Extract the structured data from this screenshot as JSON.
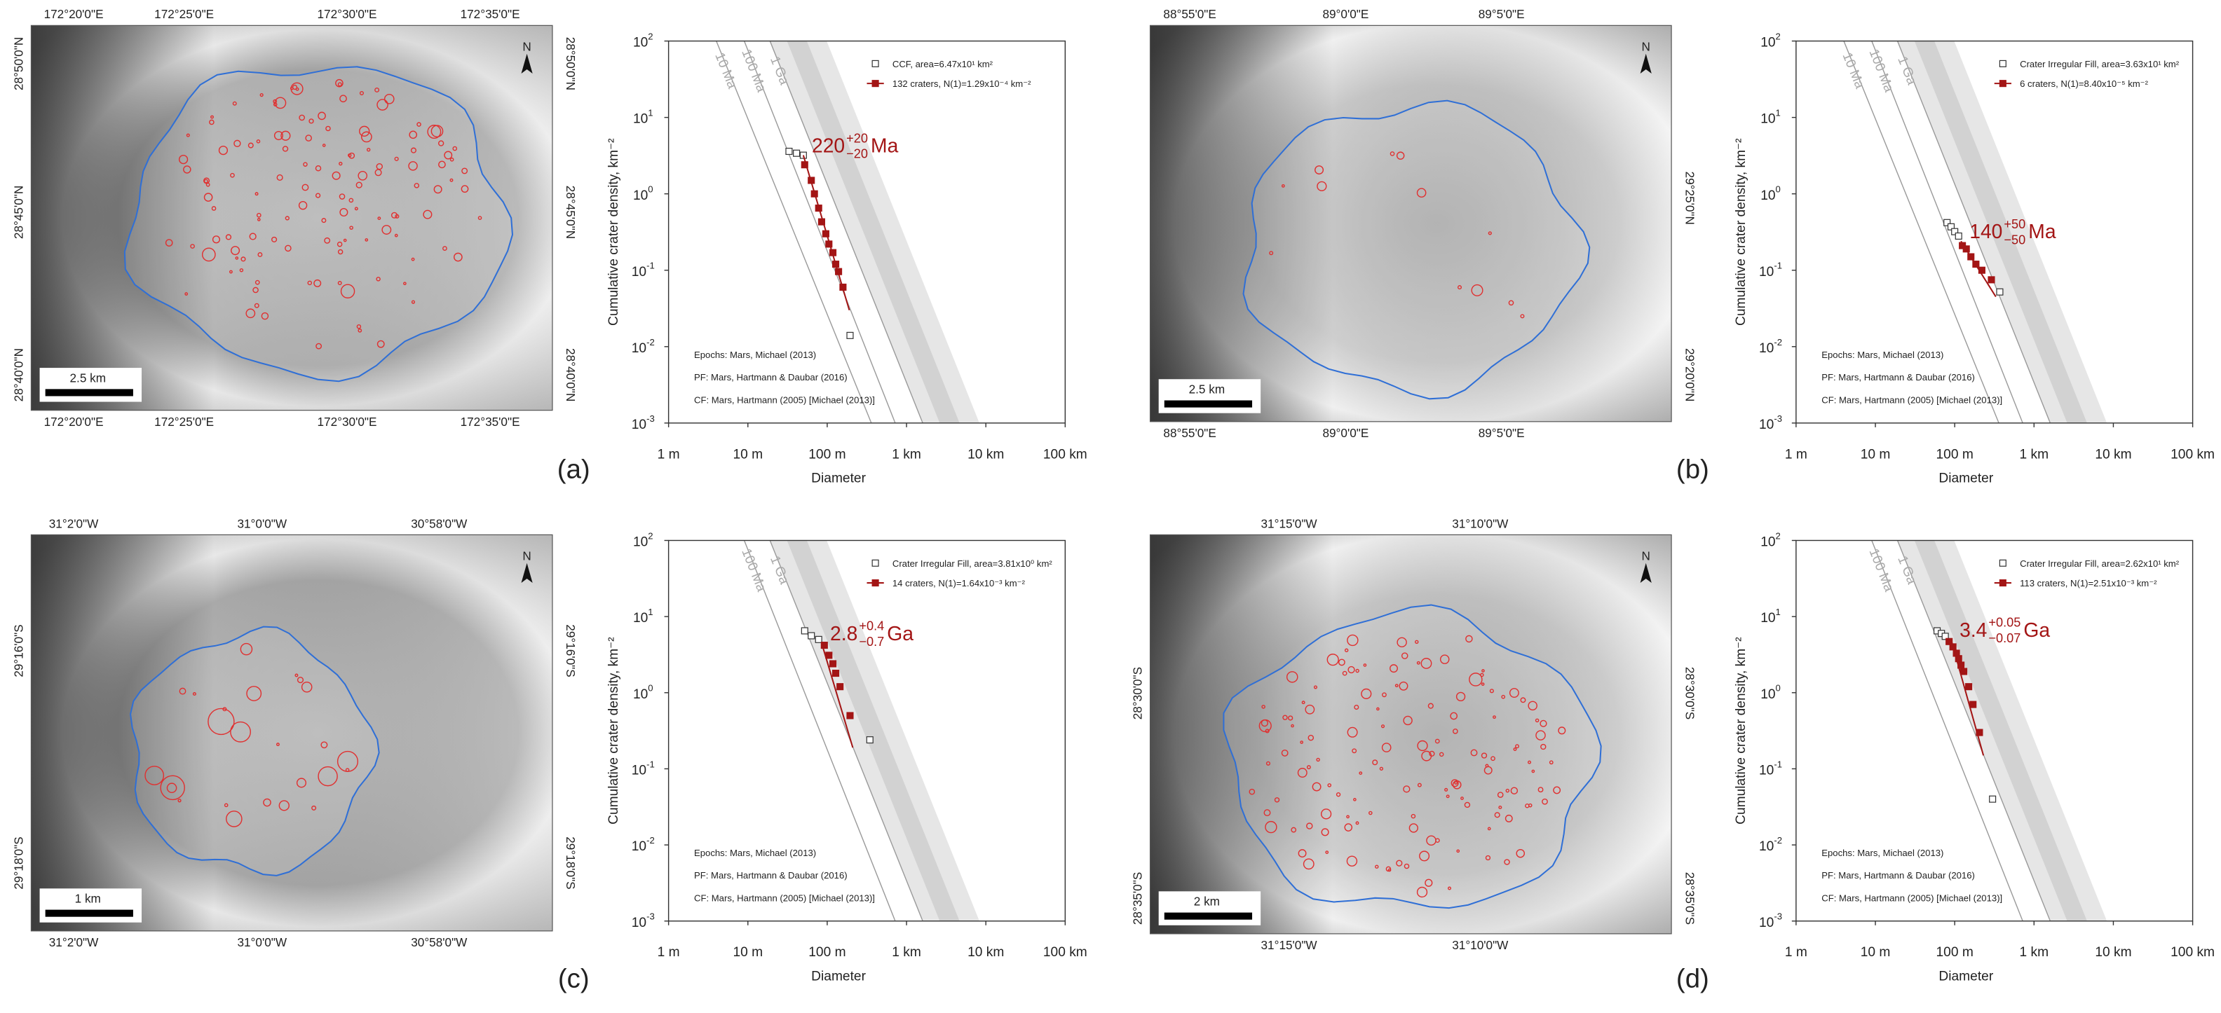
{
  "panels": [
    {
      "label": "(a)",
      "map": {
        "top_labels": [
          "172°20'0\"E",
          "172°25'0\"E",
          "172°30'0\"E",
          "172°35'0\"E"
        ],
        "bottom_labels": [
          "172°20'0\"E",
          "172°25'0\"E",
          "172°30'0\"E",
          "172°35'0\"E"
        ],
        "left_labels": [
          "28°50'0\"N",
          "28°45'0\"N",
          "28°40'0\"N"
        ],
        "right_labels": [
          "28°50'0\"N",
          "28°45'0\"N",
          "28°40'0\"N"
        ],
        "scale": "2.5 km",
        "north": "N"
      }
    },
    {
      "label": "(b)",
      "map": {
        "top_labels": [
          "88°55'0\"E",
          "89°0'0\"E",
          "89°5'0\"E"
        ],
        "bottom_labels": [
          "88°55'0\"E",
          "89°0'0\"E",
          "89°5'0\"E"
        ],
        "left_labels": [],
        "right_labels": [
          "29°25'0\"N",
          "29°20'0\"N"
        ],
        "scale": "2.5 km",
        "north": "N"
      }
    },
    {
      "label": "(c)",
      "map": {
        "top_labels": [
          "31°2'0\"W",
          "31°0'0\"W",
          "30°58'0\"W"
        ],
        "bottom_labels": [
          "31°2'0\"W",
          "31°0'0\"W",
          "30°58'0\"W"
        ],
        "left_labels": [
          "29°16'0\"S",
          "29°18'0\"S"
        ],
        "right_labels": [
          "29°16'0\"S",
          "29°18'0\"S"
        ],
        "scale": "1 km",
        "north": "N"
      }
    },
    {
      "label": "(d)",
      "map": {
        "top_labels": [
          "31°15'0\"W",
          "31°10'0\"W"
        ],
        "bottom_labels": [
          "31°15'0\"W",
          "31°10'0\"W"
        ],
        "left_labels": [
          "28°30'0\"S",
          "28°35'0\"S"
        ],
        "right_labels": [
          "28°30'0\"S",
          "28°35'0\"S"
        ],
        "scale": "2 km",
        "north": "N"
      }
    }
  ],
  "chart_data": [
    {
      "type": "scatter",
      "x_label": "Diameter",
      "y_label": "Cumulative crater density, km⁻²",
      "log_x": true,
      "log_y": true,
      "xlim": [
        1,
        100000
      ],
      "xticks": [
        {
          "value": 1,
          "label": "1 m"
        },
        {
          "value": 10,
          "label": "10 m"
        },
        {
          "value": 100,
          "label": "100 m"
        },
        {
          "value": 1000,
          "label": "1 km"
        },
        {
          "value": 10000,
          "label": "10 km"
        },
        {
          "value": 100000,
          "label": "100 km"
        }
      ],
      "ylim": [
        0.001,
        100
      ],
      "yticks": [
        {
          "value": 100,
          "label": "10",
          "exponent": "2"
        },
        {
          "value": 10,
          "label": "10",
          "exponent": "1"
        },
        {
          "value": 1,
          "label": "10",
          "exponent": "0"
        },
        {
          "value": 0.1,
          "label": "10",
          "exponent": "-1"
        },
        {
          "value": 0.01,
          "label": "10",
          "exponent": "-2"
        },
        {
          "value": 0.001,
          "label": "10",
          "exponent": "-3"
        }
      ],
      "isochrons": [
        {
          "label": "10 Ma",
          "x": [
            4,
            360
          ],
          "values": [
            100,
            0.001
          ]
        },
        {
          "label": "100 Ma",
          "x": [
            9,
            720
          ],
          "values": [
            100,
            0.001
          ]
        },
        {
          "label": "1 Ga",
          "x": [
            19,
            1600
          ],
          "values": [
            100,
            0.001
          ]
        }
      ],
      "series": [
        {
          "name": "CCF, area=6.47x10¹ km²",
          "color": "#333333",
          "marker": "open",
          "x": [
            33,
            41,
            50,
            194
          ],
          "values": [
            3.6,
            3.4,
            3.2,
            0.014
          ]
        },
        {
          "name": "132 craters, N(1)=1.29x10⁻⁴ km⁻²",
          "color": "#a31515",
          "marker": "filled",
          "x": [
            52,
            63,
            69,
            78,
            85,
            96,
            105,
            118,
            128,
            139,
            158
          ],
          "values": [
            2.4,
            1.5,
            1.0,
            0.65,
            0.43,
            0.3,
            0.22,
            0.17,
            0.12,
            0.096,
            0.06
          ],
          "fit": {
            "x": [
              50,
              190
            ],
            "values": [
              3.2,
              0.03
            ]
          }
        }
      ],
      "age": {
        "value": "220",
        "plus": "+20",
        "minus": "−20",
        "unit": "Ma"
      },
      "notes": [
        "Epochs: Mars, Michael (2013)",
        "PF: Mars, Hartmann & Daubar (2016)",
        "CF: Mars, Hartmann (2005) [Michael (2013)]"
      ]
    },
    {
      "type": "scatter",
      "x_label": "Diameter",
      "y_label": "Cumulative crater density, km⁻²",
      "log_x": true,
      "log_y": true,
      "xlim": [
        1,
        100000
      ],
      "xticks": [
        {
          "value": 1,
          "label": "1 m"
        },
        {
          "value": 10,
          "label": "10 m"
        },
        {
          "value": 100,
          "label": "100 m"
        },
        {
          "value": 1000,
          "label": "1 km"
        },
        {
          "value": 10000,
          "label": "10 km"
        },
        {
          "value": 100000,
          "label": "100 km"
        }
      ],
      "ylim": [
        0.001,
        100
      ],
      "yticks": [
        {
          "value": 100,
          "label": "10",
          "exponent": "2"
        },
        {
          "value": 10,
          "label": "10",
          "exponent": "1"
        },
        {
          "value": 1,
          "label": "10",
          "exponent": "0"
        },
        {
          "value": 0.1,
          "label": "10",
          "exponent": "-1"
        },
        {
          "value": 0.01,
          "label": "10",
          "exponent": "-2"
        },
        {
          "value": 0.001,
          "label": "10",
          "exponent": "-3"
        }
      ],
      "isochrons": [
        {
          "label": "10 Ma",
          "x": [
            4,
            360
          ],
          "values": [
            100,
            0.001
          ]
        },
        {
          "label": "100 Ma",
          "x": [
            9,
            720
          ],
          "values": [
            100,
            0.001
          ]
        },
        {
          "label": "1 Ga",
          "x": [
            19,
            1600
          ],
          "values": [
            100,
            0.001
          ]
        }
      ],
      "series": [
        {
          "name": "Crater Irregular Fill, area=3.63x10¹ km²",
          "color": "#333333",
          "marker": "open",
          "x": [
            80,
            90,
            100,
            112,
            370
          ],
          "values": [
            0.42,
            0.37,
            0.32,
            0.28,
            0.052
          ]
        },
        {
          "name": "6 craters, N(1)=8.40x10⁻⁵ km⁻²",
          "color": "#a31515",
          "marker": "filled",
          "x": [
            125,
            140,
            160,
            185,
            220,
            290
          ],
          "values": [
            0.21,
            0.19,
            0.15,
            0.12,
            0.1,
            0.075
          ],
          "fit": {
            "x": [
              120,
              330
            ],
            "values": [
              0.24,
              0.045
            ]
          }
        }
      ],
      "age": {
        "value": "140",
        "plus": "+50",
        "minus": "−50",
        "unit": "Ma"
      },
      "notes": [
        "Epochs: Mars, Michael (2013)",
        "PF: Mars, Hartmann & Daubar (2016)",
        "CF: Mars, Hartmann (2005) [Michael (2013)]"
      ]
    },
    {
      "type": "scatter",
      "x_label": "Diameter",
      "y_label": "Cumulative crater density, km⁻²",
      "log_x": true,
      "log_y": true,
      "xlim": [
        1,
        100000
      ],
      "xticks": [
        {
          "value": 1,
          "label": "1 m"
        },
        {
          "value": 10,
          "label": "10 m"
        },
        {
          "value": 100,
          "label": "100 m"
        },
        {
          "value": 1000,
          "label": "1 km"
        },
        {
          "value": 10000,
          "label": "10 km"
        },
        {
          "value": 100000,
          "label": "100 km"
        }
      ],
      "ylim": [
        0.001,
        100
      ],
      "yticks": [
        {
          "value": 100,
          "label": "10",
          "exponent": "2"
        },
        {
          "value": 10,
          "label": "10",
          "exponent": "1"
        },
        {
          "value": 1,
          "label": "10",
          "exponent": "0"
        },
        {
          "value": 0.1,
          "label": "10",
          "exponent": "-1"
        },
        {
          "value": 0.01,
          "label": "10",
          "exponent": "-2"
        },
        {
          "value": 0.001,
          "label": "10",
          "exponent": "-3"
        }
      ],
      "isochrons": [
        {
          "label": "100 Ma",
          "x": [
            9,
            720
          ],
          "values": [
            100,
            0.001
          ]
        },
        {
          "label": "1 Ga",
          "x": [
            19,
            1600
          ],
          "values": [
            100,
            0.001
          ]
        }
      ],
      "series": [
        {
          "name": "Crater Irregular Fill, area=3.81x10⁰ km²",
          "color": "#333333",
          "marker": "open",
          "x": [
            52,
            63,
            78,
            345
          ],
          "values": [
            6.5,
            5.6,
            5.0,
            0.24
          ]
        },
        {
          "name": "14 craters, N(1)=1.64x10⁻³ km⁻²",
          "color": "#a31515",
          "marker": "filled",
          "x": [
            92,
            105,
            118,
            128,
            145,
            194
          ],
          "values": [
            4.2,
            3.1,
            2.4,
            1.8,
            1.2,
            0.5
          ],
          "fit": {
            "x": [
              85,
              210
            ],
            "values": [
              4.5,
              0.19
            ]
          }
        }
      ],
      "age": {
        "value": "2.8",
        "plus": "+0.4",
        "minus": "−0.7",
        "unit": "Ga"
      },
      "notes": [
        "Epochs: Mars, Michael (2013)",
        "PF: Mars, Hartmann & Daubar (2016)",
        "CF: Mars, Hartmann (2005) [Michael (2013)]"
      ]
    },
    {
      "type": "scatter",
      "x_label": "Diameter",
      "y_label": "Cumulative crater density, km⁻²",
      "log_x": true,
      "log_y": true,
      "xlim": [
        1,
        100000
      ],
      "xticks": [
        {
          "value": 1,
          "label": "1 m"
        },
        {
          "value": 10,
          "label": "10 m"
        },
        {
          "value": 100,
          "label": "100 m"
        },
        {
          "value": 1000,
          "label": "1 km"
        },
        {
          "value": 10000,
          "label": "10 km"
        },
        {
          "value": 100000,
          "label": "100 km"
        }
      ],
      "ylim": [
        0.001,
        100
      ],
      "yticks": [
        {
          "value": 100,
          "label": "10",
          "exponent": "2"
        },
        {
          "value": 10,
          "label": "10",
          "exponent": "1"
        },
        {
          "value": 1,
          "label": "10",
          "exponent": "0"
        },
        {
          "value": 0.1,
          "label": "10",
          "exponent": "-1"
        },
        {
          "value": 0.01,
          "label": "10",
          "exponent": "-2"
        },
        {
          "value": 0.001,
          "label": "10",
          "exponent": "-3"
        }
      ],
      "isochrons": [
        {
          "label": "100 Ma",
          "x": [
            9,
            720
          ],
          "values": [
            100,
            0.001
          ]
        },
        {
          "label": "1 Ga",
          "x": [
            19,
            1600
          ],
          "values": [
            100,
            0.001
          ]
        }
      ],
      "series": [
        {
          "name": "Crater Irregular Fill, area=2.62x10¹ km²",
          "color": "#333333",
          "marker": "open",
          "x": [
            60,
            68,
            76,
            300
          ],
          "values": [
            6.5,
            6.0,
            5.5,
            0.04
          ]
        },
        {
          "name": "113 craters, N(1)=2.51x10⁻³ km⁻²",
          "color": "#a31515",
          "marker": "filled",
          "x": [
            85,
            95,
            105,
            112,
            120,
            130,
            150,
            170,
            205
          ],
          "values": [
            4.7,
            4.0,
            3.3,
            2.8,
            2.3,
            1.9,
            1.2,
            0.7,
            0.3
          ],
          "fit": {
            "x": [
              90,
              230
            ],
            "values": [
              5,
              0.15
            ]
          }
        }
      ],
      "age": {
        "value": "3.4",
        "plus": "+0.05",
        "minus": "−0.07",
        "unit": "Ga"
      },
      "notes": [
        "Epochs: Mars, Michael (2013)",
        "PF: Mars, Hartmann & Daubar (2016)",
        "CF: Mars, Hartmann (2005) [Michael (2013)]"
      ]
    }
  ]
}
